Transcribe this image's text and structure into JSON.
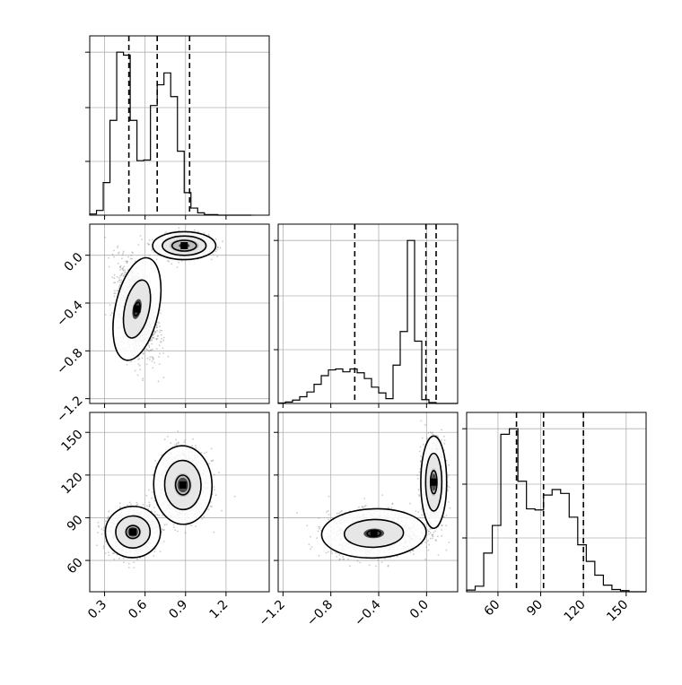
{
  "chart_data": {
    "type": "corner",
    "grid": true,
    "histograms": [
      {
        "panel": "histogram-x",
        "bin_edges": [
          0.19,
          0.24,
          0.29,
          0.34,
          0.39,
          0.44,
          0.49,
          0.54,
          0.59,
          0.64,
          0.69,
          0.74,
          0.79,
          0.84,
          0.89,
          0.94,
          0.99,
          1.04,
          1.09,
          1.14,
          1.19,
          1.24,
          1.29,
          1.34,
          1.39
        ],
        "counts": [
          2,
          8,
          55,
          160,
          275,
          270,
          160,
          92,
          93,
          185,
          220,
          240,
          200,
          108,
          38,
          12,
          4,
          1,
          1,
          0,
          0,
          0,
          0,
          0
        ],
        "quantiles": [
          0.48,
          0.69,
          0.93
        ],
        "xlim": [
          0.19,
          1.52
        ],
        "xticks": [
          0.3,
          0.6,
          0.9,
          1.2
        ],
        "tick_labels": [
          "0.3",
          "0.6",
          "0.9",
          "1.2"
        ]
      },
      {
        "panel": "histogram-y",
        "bin_edges": [
          -1.24,
          -1.18,
          -1.12,
          -1.06,
          -1.0,
          -0.94,
          -0.88,
          -0.82,
          -0.76,
          -0.7,
          -0.64,
          -0.58,
          -0.52,
          -0.46,
          -0.4,
          -0.34,
          -0.28,
          -0.22,
          -0.16,
          -0.1,
          -0.04,
          0.02,
          0.08,
          0.14,
          0.2,
          0.26
        ],
        "counts": [
          1,
          3,
          7,
          14,
          24,
          40,
          58,
          70,
          72,
          66,
          72,
          64,
          52,
          34,
          22,
          10,
          80,
          150,
          340,
          130,
          8,
          2,
          0,
          0,
          0
        ],
        "quantiles": [
          -0.6,
          -0.005,
          0.08
        ],
        "xlim": [
          -1.24,
          0.26
        ],
        "xticks": [
          -1.2,
          -0.8,
          -0.4,
          0.0
        ],
        "tick_labels": [
          "−1.2",
          "−0.8",
          "−0.4",
          "0.0"
        ]
      },
      {
        "panel": "histogram-z",
        "bin_edges": [
          38,
          44,
          50,
          56,
          62,
          68,
          74,
          80,
          86,
          92,
          98,
          104,
          110,
          116,
          122,
          128,
          134,
          140,
          146,
          152,
          158,
          164
        ],
        "counts": [
          3,
          10,
          70,
          120,
          285,
          295,
          200,
          150,
          148,
          175,
          185,
          178,
          135,
          85,
          55,
          30,
          12,
          4,
          2,
          0,
          0
        ],
        "quantiles": [
          73,
          92,
          120
        ],
        "xlim": [
          38,
          164
        ],
        "xticks": [
          60,
          90,
          120,
          150
        ],
        "tick_labels": [
          "60",
          "90",
          "120",
          "150"
        ]
      }
    ],
    "scatter_panels": [
      {
        "panel": "scatter-x-y",
        "xlim": [
          0.19,
          1.52
        ],
        "ylim": [
          -1.24,
          0.26
        ],
        "xticks": [
          0.3,
          0.6,
          0.9,
          1.2
        ],
        "yticks": [
          -1.2,
          -0.8,
          -0.4,
          0.0
        ],
        "y_tick_labels": [
          "−1.2",
          "−0.8",
          "−0.4",
          "0.0"
        ],
        "clusters": [
          {
            "center": [
              0.89,
              0.08
            ],
            "sd": [
              0.09,
              0.045
            ],
            "rho": 0.0,
            "n": 1400,
            "contour_scales": [
              1.0,
              1.8,
              2.6
            ]
          },
          {
            "center": [
              0.54,
              -0.45
            ],
            "sd": [
              0.07,
              0.19
            ],
            "rho": -0.35,
            "n": 1400,
            "contour_scales": [
              0.3,
              1.3,
              2.3
            ]
          }
        ]
      },
      {
        "panel": "scatter-x-z",
        "xlim": [
          0.19,
          1.52
        ],
        "ylim": [
          38,
          164
        ],
        "xticks": [
          0.3,
          0.6,
          0.9,
          1.2
        ],
        "yticks": [
          60,
          90,
          120,
          150
        ],
        "y_tick_labels": [
          "60",
          "90",
          "120",
          "150"
        ],
        "x_tick_labels": [
          "0.3",
          "0.6",
          "0.9",
          "1.2"
        ],
        "clusters": [
          {
            "center": [
              0.88,
              113
            ],
            "sd": [
              0.09,
              11.5
            ],
            "rho": 0.05,
            "n": 1400,
            "contour_scales": [
              0.6,
              1.5,
              2.4
            ]
          },
          {
            "center": [
              0.51,
              80
            ],
            "sd": [
              0.085,
              7.5
            ],
            "rho": 0.1,
            "n": 1400,
            "contour_scales": [
              0.6,
              1.5,
              2.4
            ]
          }
        ]
      },
      {
        "panel": "scatter-y-z",
        "xlim": [
          -1.24,
          0.26
        ],
        "ylim": [
          38,
          164
        ],
        "xticks": [
          -1.2,
          -0.8,
          -0.4,
          0.0
        ],
        "yticks": [
          60,
          90,
          120,
          150
        ],
        "x_tick_labels": [
          "−1.2",
          "−0.8",
          "−0.4",
          "0.0"
        ],
        "clusters": [
          {
            "center": [
              0.06,
              115
            ],
            "sd": [
              0.045,
              13.5
            ],
            "rho": 0.0,
            "n": 1400,
            "contour_scales": [
              0.6,
              1.5,
              2.4
            ]
          },
          {
            "center": [
              -0.44,
              79
            ],
            "sd": [
              0.19,
              7.5
            ],
            "rho": 0.05,
            "n": 1400,
            "contour_scales": [
              0.3,
              1.3,
              2.3
            ]
          }
        ]
      }
    ],
    "z_tick_labels": [
      "60",
      "90",
      "120",
      "150"
    ]
  }
}
